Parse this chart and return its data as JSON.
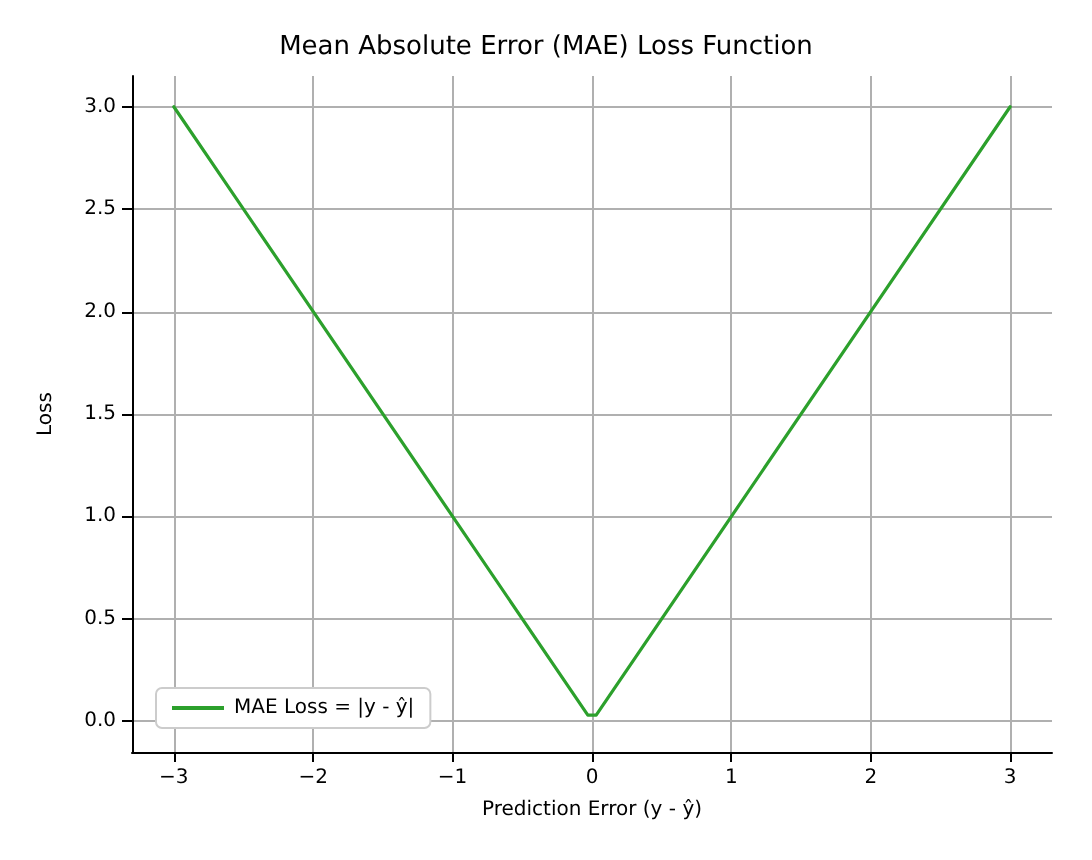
{
  "chart_data": {
    "type": "line",
    "title": "Mean Absolute Error (MAE) Loss Function",
    "xlabel": "Prediction Error (y - ŷ)",
    "ylabel": "Loss",
    "x": [
      -3,
      -0.03,
      0.03,
      3
    ],
    "series": [
      {
        "name": "MAE Loss = |y - ŷ|",
        "color": "#2ca02c",
        "values": [
          3,
          0.03,
          0.03,
          3
        ]
      }
    ],
    "xlim": [
      -3.3,
      3.3
    ],
    "ylim": [
      -0.15,
      3.15
    ],
    "xticks": [
      {
        "value": -3,
        "label": "−3"
      },
      {
        "value": -2,
        "label": "−2"
      },
      {
        "value": -1,
        "label": "−1"
      },
      {
        "value": 0,
        "label": "0"
      },
      {
        "value": 1,
        "label": "1"
      },
      {
        "value": 2,
        "label": "2"
      },
      {
        "value": 3,
        "label": "3"
      }
    ],
    "yticks": [
      {
        "value": 0,
        "label": "0.0"
      },
      {
        "value": 0.5,
        "label": "0.5"
      },
      {
        "value": 1,
        "label": "1.0"
      },
      {
        "value": 1.5,
        "label": "1.5"
      },
      {
        "value": 2,
        "label": "2.0"
      },
      {
        "value": 2.5,
        "label": "2.5"
      },
      {
        "value": 3,
        "label": "3.0"
      }
    ],
    "grid": true,
    "legend": "bottom left",
    "marker": "none",
    "line_style": "solid"
  }
}
